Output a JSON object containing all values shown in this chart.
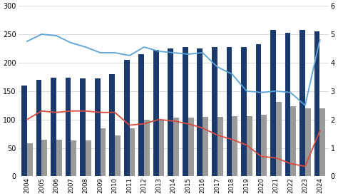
{
  "years": [
    2004,
    2005,
    2006,
    2007,
    2008,
    2009,
    2010,
    2011,
    2012,
    2013,
    2014,
    2015,
    2016,
    2017,
    2018,
    2019,
    2020,
    2021,
    2022,
    2023,
    2024
  ],
  "japan_debt": [
    160,
    170,
    173,
    173,
    172,
    172,
    180,
    205,
    215,
    222,
    225,
    228,
    225,
    228,
    228,
    228,
    233,
    257,
    252,
    258,
    255
  ],
  "us_debt": [
    58,
    65,
    64,
    63,
    63,
    85,
    72,
    85,
    100,
    100,
    103,
    103,
    105,
    105,
    106,
    106,
    109,
    131,
    124,
    120,
    120
  ],
  "japan_yield": [
    4.75,
    5.0,
    4.95,
    4.7,
    4.55,
    4.35,
    4.35,
    4.25,
    4.55,
    4.4,
    4.35,
    4.3,
    4.35,
    3.85,
    3.6,
    3.0,
    2.95,
    3.0,
    2.95,
    2.5,
    4.8
  ],
  "us_yield": [
    2.0,
    2.3,
    2.25,
    2.3,
    2.3,
    2.25,
    2.25,
    1.8,
    1.85,
    2.0,
    1.95,
    1.85,
    1.7,
    1.45,
    1.3,
    1.1,
    0.7,
    0.65,
    0.45,
    0.35,
    1.6
  ],
  "left_ylim": [
    0,
    300
  ],
  "right_ylim": [
    0,
    6
  ],
  "left_yticks": [
    0,
    50,
    100,
    150,
    200,
    250,
    300
  ],
  "right_yticks": [
    0,
    1,
    2,
    3,
    4,
    5,
    6
  ],
  "bar_width": 0.38,
  "navy_color": "#1a3a6b",
  "gray_color": "#9a9a9a",
  "blue_line_color": "#5ba3d9",
  "red_line_color": "#d94c3d",
  "grid_color": "#cccccc",
  "bg_color": "#ffffff"
}
